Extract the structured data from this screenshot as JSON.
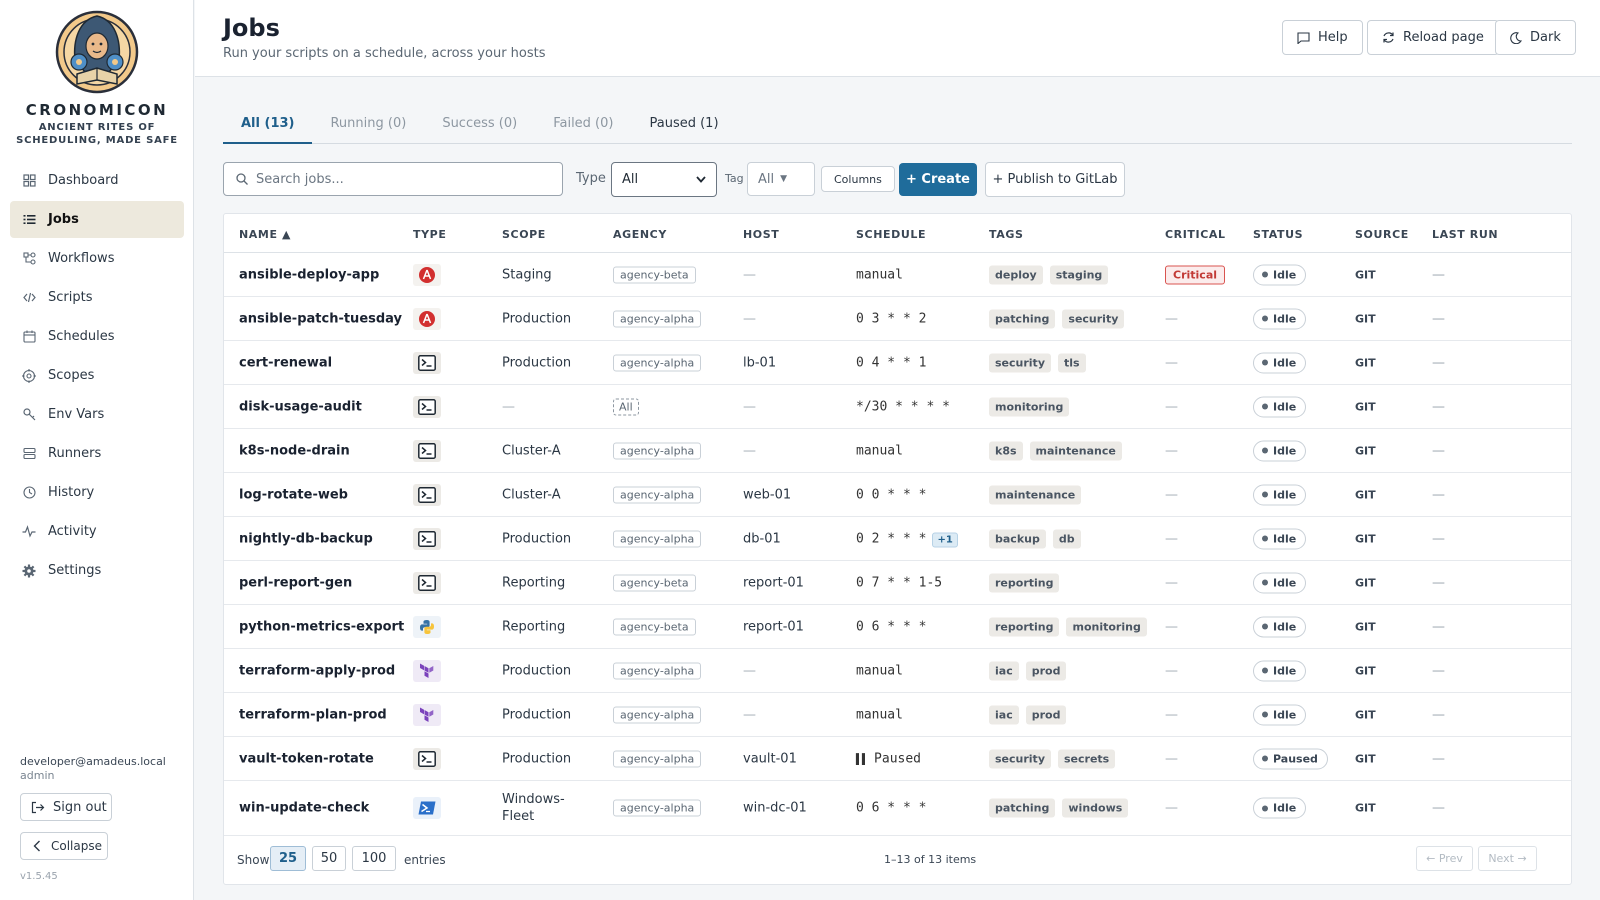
{
  "brand": {
    "title": "CRONOMICON",
    "subtitle_line1": "ANCIENT RITES OF",
    "subtitle_line2": "SCHEDULING, MADE SAFE"
  },
  "sidebar": {
    "items": [
      {
        "label": "Dashboard",
        "icon": "dashboard-icon"
      },
      {
        "label": "Jobs",
        "icon": "list-icon",
        "active": true
      },
      {
        "label": "Workflows",
        "icon": "workflow-icon"
      },
      {
        "label": "Scripts",
        "icon": "code-icon"
      },
      {
        "label": "Schedules",
        "icon": "calendar-icon"
      },
      {
        "label": "Scopes",
        "icon": "target-icon"
      },
      {
        "label": "Env Vars",
        "icon": "key-icon"
      },
      {
        "label": "Runners",
        "icon": "server-icon"
      },
      {
        "label": "History",
        "icon": "clock-icon"
      },
      {
        "label": "Activity",
        "icon": "activity-icon"
      },
      {
        "label": "Settings",
        "icon": "gear-icon"
      }
    ],
    "user_email": "developer@amadeus.local",
    "user_role": "admin",
    "sign_out": "Sign out",
    "collapse": "Collapse",
    "version": "v1.5.45"
  },
  "header": {
    "title": "Jobs",
    "subtitle": "Run your scripts on a schedule, across your hosts",
    "help": "Help",
    "reload": "Reload page",
    "theme": "Dark"
  },
  "tabs": [
    {
      "label": "All (13)",
      "active": true
    },
    {
      "label": "Running (0)"
    },
    {
      "label": "Success (0)"
    },
    {
      "label": "Failed (0)"
    },
    {
      "label": "Paused (1)"
    }
  ],
  "toolbar": {
    "search_placeholder": "Search jobs...",
    "type_label": "Type",
    "type_value": "All",
    "tag_label": "Tag",
    "tag_value": "All",
    "columns": "Columns",
    "create": "+ Create",
    "publish": "+ Publish to GitLab"
  },
  "table": {
    "headers": [
      "NAME ▲",
      "TYPE",
      "SCOPE",
      "AGENCY",
      "HOST",
      "SCHEDULE",
      "TAGS",
      "CRITICAL",
      "STATUS",
      "SOURCE",
      "LAST RUN"
    ],
    "rows": [
      {
        "name": "ansible-deploy-app",
        "type": "ansible",
        "scope": "Staging",
        "agency": "agency-beta",
        "host": "—",
        "schedule": "manual",
        "tags": [
          "deploy",
          "staging"
        ],
        "critical": "Critical",
        "status": "Idle",
        "source": "GIT",
        "last_run": "—"
      },
      {
        "name": "ansible-patch-tuesday",
        "type": "ansible",
        "scope": "Production",
        "agency": "agency-alpha",
        "host": "—",
        "schedule": "0 3 * * 2",
        "tags": [
          "patching",
          "security"
        ],
        "critical": "—",
        "status": "Idle",
        "source": "GIT",
        "last_run": "—"
      },
      {
        "name": "cert-renewal",
        "type": "shell",
        "scope": "Production",
        "agency": "agency-alpha",
        "host": "lb-01",
        "schedule": "0 4 * * 1",
        "tags": [
          "security",
          "tls"
        ],
        "critical": "—",
        "status": "Idle",
        "source": "GIT",
        "last_run": "—"
      },
      {
        "name": "disk-usage-audit",
        "type": "shell",
        "scope": "—",
        "agency": "All",
        "agency_all": true,
        "host": "—",
        "schedule": "*/30 * * * *",
        "tags": [
          "monitoring"
        ],
        "critical": "—",
        "status": "Idle",
        "source": "GIT",
        "last_run": "—"
      },
      {
        "name": "k8s-node-drain",
        "type": "shell",
        "scope": "Cluster-A",
        "agency": "agency-alpha",
        "host": "—",
        "schedule": "manual",
        "tags": [
          "k8s",
          "maintenance"
        ],
        "critical": "—",
        "status": "Idle",
        "source": "GIT",
        "last_run": "—"
      },
      {
        "name": "log-rotate-web",
        "type": "shell",
        "scope": "Cluster-A",
        "agency": "agency-alpha",
        "host": "web-01",
        "schedule": "0 0 * * *",
        "tags": [
          "maintenance"
        ],
        "critical": "—",
        "status": "Idle",
        "source": "GIT",
        "last_run": "—"
      },
      {
        "name": "nightly-db-backup",
        "type": "shell",
        "scope": "Production",
        "agency": "agency-alpha",
        "host": "db-01",
        "schedule": "0 2 * * *",
        "schedule_extra": "+1",
        "tags": [
          "backup",
          "db"
        ],
        "critical": "—",
        "status": "Idle",
        "source": "GIT",
        "last_run": "—"
      },
      {
        "name": "perl-report-gen",
        "type": "shell",
        "scope": "Reporting",
        "agency": "agency-beta",
        "host": "report-01",
        "schedule": "0 7 * * 1-5",
        "tags": [
          "reporting"
        ],
        "critical": "—",
        "status": "Idle",
        "source": "GIT",
        "last_run": "—"
      },
      {
        "name": "python-metrics-export",
        "type": "python",
        "scope": "Reporting",
        "agency": "agency-beta",
        "host": "report-01",
        "schedule": "0 6 * * *",
        "tags": [
          "reporting",
          "monitoring"
        ],
        "critical": "—",
        "status": "Idle",
        "source": "GIT",
        "last_run": "—"
      },
      {
        "name": "terraform-apply-prod",
        "type": "terraform",
        "scope": "Production",
        "agency": "agency-alpha",
        "host": "—",
        "schedule": "manual",
        "tags": [
          "iac",
          "prod"
        ],
        "critical": "—",
        "status": "Idle",
        "source": "GIT",
        "last_run": "—"
      },
      {
        "name": "terraform-plan-prod",
        "type": "terraform",
        "scope": "Production",
        "agency": "agency-alpha",
        "host": "—",
        "schedule": "manual",
        "tags": [
          "iac",
          "prod"
        ],
        "critical": "—",
        "status": "Idle",
        "source": "GIT",
        "last_run": "—"
      },
      {
        "name": "vault-token-rotate",
        "type": "shell",
        "scope": "Production",
        "agency": "agency-alpha",
        "host": "vault-01",
        "schedule": "Paused",
        "paused": true,
        "tags": [
          "security",
          "secrets"
        ],
        "critical": "—",
        "status": "Paused",
        "source": "GIT",
        "last_run": "—"
      },
      {
        "name": "win-update-check",
        "type": "powershell",
        "scope": "Windows-Fleet",
        "scope_line1": "Windows-",
        "scope_line2": "Fleet",
        "agency": "agency-alpha",
        "host": "win-dc-01",
        "schedule": "0 6 * * *",
        "tags": [
          "patching",
          "windows"
        ],
        "critical": "—",
        "status": "Idle",
        "source": "GIT",
        "last_run": "—"
      }
    ]
  },
  "footer": {
    "show": "Show",
    "page_sizes": [
      "25",
      "50",
      "100"
    ],
    "entries": "entries",
    "items": "1–13 of 13 items",
    "prev": "← Prev",
    "next": "Next →"
  },
  "colors": {
    "accent": "#1f6c9b",
    "critical": "#c23a36",
    "ansible": "#d22f2f",
    "terraform": "#7b42bc",
    "python_blue": "#3572a5",
    "python_yellow": "#f7c43b",
    "powershell": "#2a6fc9"
  }
}
